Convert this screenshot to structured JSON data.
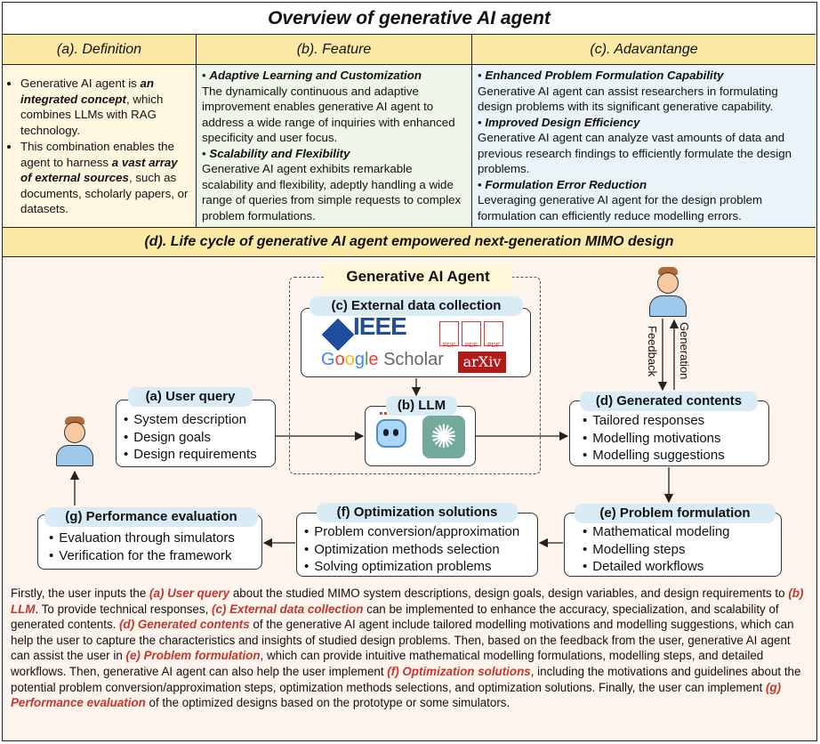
{
  "title": "Overview of  generative AI agent",
  "columns": {
    "definition": {
      "header": "(a). Definition",
      "bullets": [
        {
          "plain1": "Generative AI agent is ",
          "em": "an integrated concept",
          "plain2": ", which combines LLMs with RAG technology."
        },
        {
          "plain1": "This combination enables the agent to harness ",
          "em": "a vast array of external sources",
          "plain2": ", such as documents, scholarly papers, or datasets."
        }
      ]
    },
    "feature": {
      "header": "(b). Feature",
      "items": [
        {
          "title": "Adaptive Learning and Customization",
          "text": "The dynamically continuous and adaptive improvement enables generative AI agent to address a wide range of inquiries with enhanced specificity and user focus."
        },
        {
          "title": "Scalability and Flexibility",
          "text": "Generative AI agent exhibits remarkable scalability and flexibility, adeptly handling a wide range of queries from simple requests to complex problem formulations."
        }
      ]
    },
    "advantage": {
      "header": "(c). Adavantange",
      "items": [
        {
          "title": "Enhanced Problem Formulation Capability",
          "text": "Generative AI agent can assist researchers in formulating design problems with its significant generative capability."
        },
        {
          "title": "Improved Design Efficiency",
          "text": "Generative AI agent can analyze vast amounts of data and previous research findings to efficiently formulate the design problems."
        },
        {
          "title": "Formulation Error Reduction",
          "text": "Leveraging generative AI agent for the design problem formulation can efficiently reduce modelling errors."
        }
      ]
    }
  },
  "lifecycle": {
    "header": "(d). Life cycle of generative AI agent empowered next-generation MIMO design",
    "agent_title": "Generative AI Agent",
    "external": {
      "label": "(c) External data collection",
      "ieee": "IEEE",
      "google": "Google Scholar",
      "arxiv": "arXiv",
      "pdf": "PDF"
    },
    "llm": {
      "label": "(b) LLM"
    },
    "user_query": {
      "label": "(a) User query",
      "items": [
        "System description",
        "Design goals",
        "Design requirements"
      ]
    },
    "generated": {
      "label": "(d) Generated contents",
      "items": [
        "Tailored responses",
        "Modelling motivations",
        "Modelling suggestions"
      ]
    },
    "problem": {
      "label": "(e) Problem formulation",
      "items": [
        "Mathematical modeling",
        "Modelling steps",
        "Detailed workflows"
      ]
    },
    "optimization": {
      "label": "(f) Optimization solutions",
      "items": [
        "Problem conversion/approximation",
        "Optimization methods selection",
        "Solving optimization problems"
      ]
    },
    "performance": {
      "label": "(g) Performance evaluation",
      "items": [
        "Evaluation through simulators",
        "Verification for the framework"
      ]
    },
    "feedback": "Feedback",
    "generation": "Generation"
  },
  "description": [
    {
      "t": "Firstly, the user inputs the "
    },
    {
      "t": "(a) User query",
      "h": true
    },
    {
      "t": " about the studied MIMO system descriptions, design goals, design variables, and design requirements to "
    },
    {
      "t": "(b) LLM",
      "h": true
    },
    {
      "t": ". To provide technical responses, "
    },
    {
      "t": "(c) External data collection",
      "h": true
    },
    {
      "t": " can be implemented to enhance the accuracy, specialization, and scalability of generated contents.  "
    },
    {
      "t": "(d) Generated contents",
      "h": true
    },
    {
      "t": " of the generative AI agent include tailored modelling motivations and modelling suggestions, which can help the user to capture the characteristics and insights of studied design problems. Then, based on the feedback from the user, generative AI agent can assist the user in "
    },
    {
      "t": "(e) Problem formulation",
      "h": true
    },
    {
      "t": ", which can provide intuitive mathematical modelling formulations, modelling steps, and detailed workflows. Then, generative AI agent can also help the user implement  "
    },
    {
      "t": "(f) Optimization solutions",
      "h": true
    },
    {
      "t": ", including the motivations and guidelines about the potential problem conversion/approximation steps, optimization methods selections, and optimization solutions. Finally, the user can implement "
    },
    {
      "t": "(g) Performance evaluation",
      "h": true
    },
    {
      "t": " of the optimized designs based on the prototype or some simulators."
    }
  ]
}
